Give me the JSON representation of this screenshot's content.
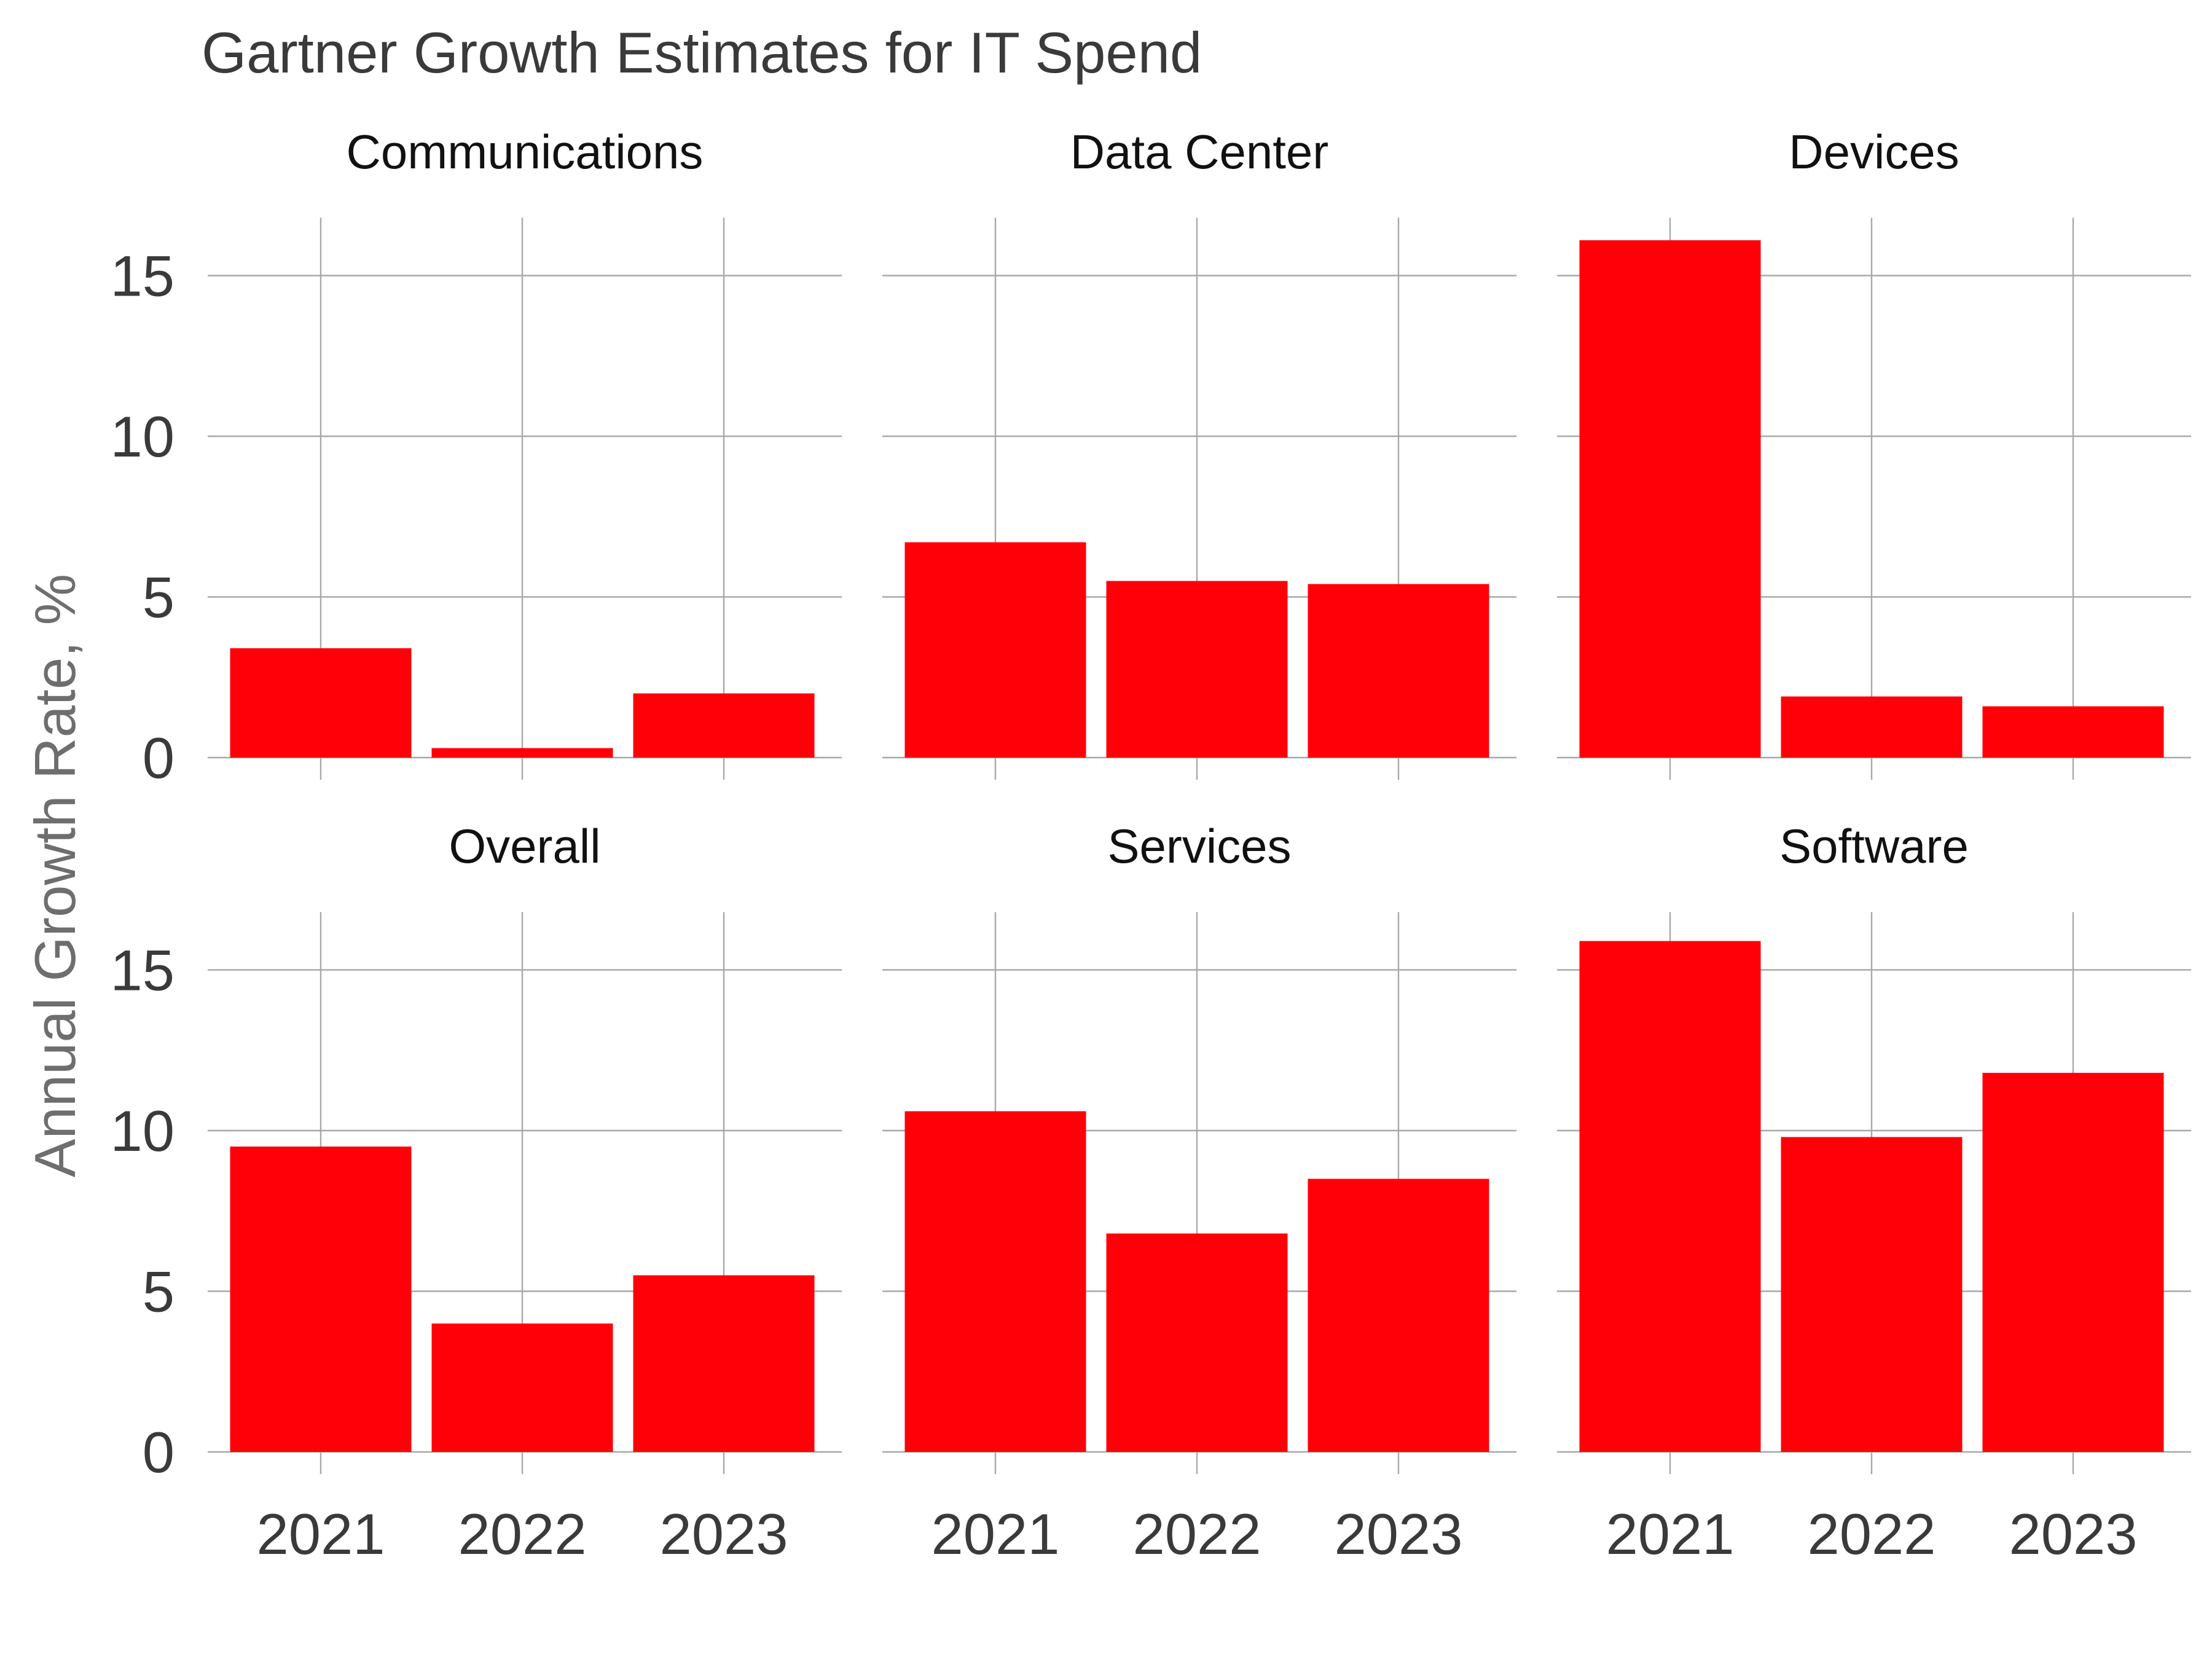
{
  "chart_data": {
    "type": "bar",
    "title": "Gartner Growth Estimates for IT Spend",
    "xlabel": "",
    "ylabel": "Annual Growth Rate, %",
    "categories": [
      "2021",
      "2022",
      "2023"
    ],
    "yticks": [
      0,
      5,
      10,
      15
    ],
    "ylim": [
      0,
      16.8
    ],
    "grid": true,
    "bar_color": "#FF0009",
    "layout": "2 rows x 3 columns (facets)",
    "panels": [
      {
        "name": "Communications",
        "values": [
          3.4,
          0.3,
          2.0
        ]
      },
      {
        "name": "Data Center",
        "values": [
          6.7,
          5.5,
          5.4
        ]
      },
      {
        "name": "Devices",
        "values": [
          16.1,
          1.9,
          1.6
        ]
      },
      {
        "name": "Overall",
        "values": [
          9.5,
          4.0,
          5.5
        ]
      },
      {
        "name": "Services",
        "values": [
          10.6,
          6.8,
          8.5
        ]
      },
      {
        "name": "Software",
        "values": [
          15.9,
          9.8,
          11.8
        ]
      }
    ]
  }
}
